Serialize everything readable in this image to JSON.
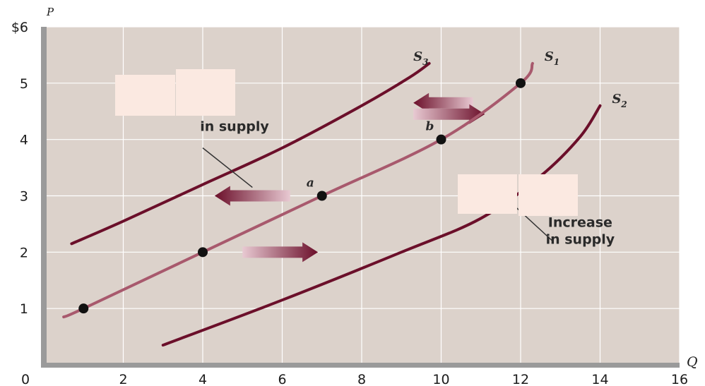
{
  "chart_data": {
    "type": "line",
    "title": "",
    "xlabel": "Q",
    "ylabel": "P",
    "xlim": [
      0,
      16
    ],
    "ylim": [
      0,
      6
    ],
    "x_ticks": [
      "0",
      "2",
      "4",
      "6",
      "8",
      "10",
      "12",
      "14",
      "16"
    ],
    "y_ticks": [
      "",
      "1",
      "2",
      "3",
      "4",
      "5",
      "$6"
    ],
    "grid": true,
    "background": "#dcd2cb",
    "series": [
      {
        "name": "S3",
        "color": "#6b0f2a",
        "x": [
          0.7,
          2,
          4,
          6,
          8,
          9.2,
          9.7
        ],
        "y": [
          2.15,
          2.55,
          3.2,
          3.85,
          4.6,
          5.1,
          5.35
        ]
      },
      {
        "name": "S1",
        "color": "#a8596d",
        "x": [
          0.5,
          1,
          4,
          7,
          10,
          12,
          12.3
        ],
        "y": [
          0.85,
          1.0,
          2.0,
          3.0,
          4.0,
          5.0,
          5.35
        ]
      },
      {
        "name": "S2",
        "color": "#6b0f2a",
        "x": [
          3,
          6,
          9,
          11,
          12.5,
          13.5,
          14
        ],
        "y": [
          0.35,
          1.15,
          2.0,
          2.6,
          3.35,
          4.05,
          4.6
        ]
      }
    ],
    "points": [
      {
        "x": 1,
        "y": 1,
        "label": ""
      },
      {
        "x": 4,
        "y": 2,
        "label": ""
      },
      {
        "x": 7,
        "y": 3,
        "label": "a"
      },
      {
        "x": 10,
        "y": 4,
        "label": "b"
      },
      {
        "x": 12,
        "y": 5,
        "label": ""
      }
    ],
    "curve_labels": [
      {
        "main": "S",
        "sub": "3",
        "x": 9.3,
        "y": 5.4
      },
      {
        "main": "S",
        "sub": "1",
        "x": 12.6,
        "y": 5.4
      },
      {
        "main": "S",
        "sub": "2",
        "x": 14.3,
        "y": 4.65
      }
    ],
    "arrows": [
      {
        "direction": "left",
        "x_from": 10.8,
        "x_to": 9.3,
        "y": 4.65
      },
      {
        "direction": "left",
        "x_from": 6.2,
        "x_to": 4.3,
        "y": 3.0
      },
      {
        "direction": "right",
        "x_from": 9.3,
        "x_to": 11.1,
        "y": 4.45
      },
      {
        "direction": "right",
        "x_from": 5.0,
        "x_to": 6.9,
        "y": 2.0
      }
    ],
    "annotations": [
      {
        "lines": [
          "in supply"
        ],
        "x": 4.8,
        "y": 4.15,
        "leader": [
          [
            4.0,
            3.85
          ],
          [
            5.25,
            3.15
          ]
        ]
      },
      {
        "lines": [
          "Increase",
          "in supply"
        ],
        "x": 13.5,
        "y": 2.45,
        "leader": [
          [
            11.8,
            2.85
          ],
          [
            12.8,
            2.2
          ]
        ]
      }
    ]
  }
}
